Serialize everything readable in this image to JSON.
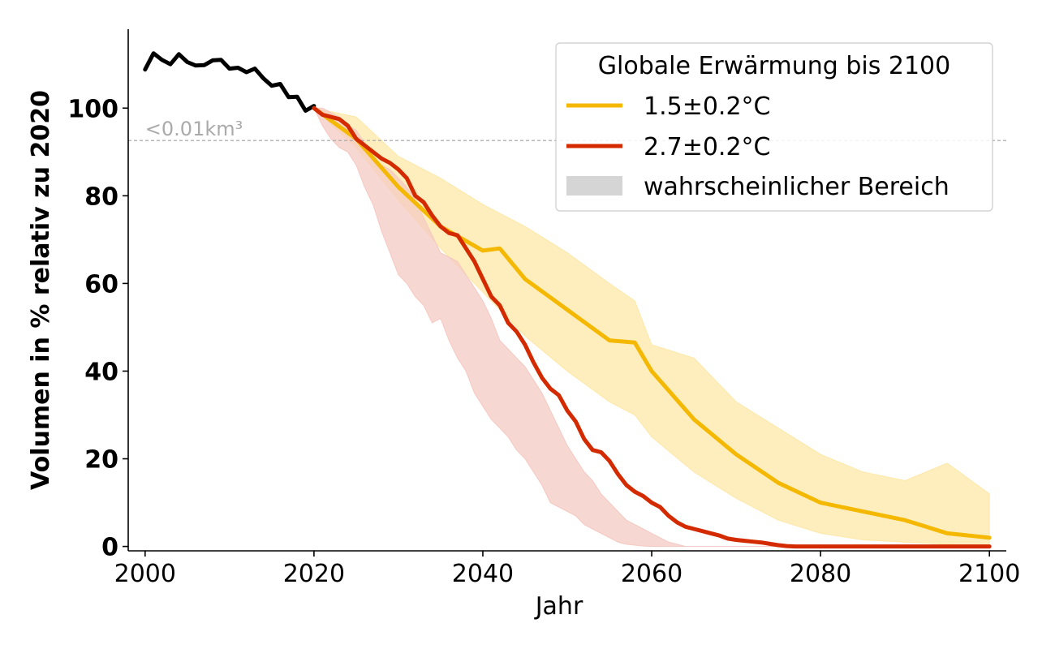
{
  "chart_data": {
    "type": "line",
    "xlabel": "Jahr",
    "ylabel": "Volumen in % relativ zu 2020",
    "xlim": [
      1998,
      2102
    ],
    "ylim": [
      -1,
      118
    ],
    "x_ticks": [
      2000,
      2020,
      2040,
      2060,
      2080,
      2100
    ],
    "y_ticks": [
      0,
      20,
      40,
      60,
      80,
      100
    ],
    "grid": false,
    "legend": {
      "title": "Globale Erwärmung bis 2100",
      "position": "top-right",
      "range_label": "wahrscheinlicher Bereich",
      "range_color": "#d5d5d5"
    },
    "threshold": {
      "y": 92.6,
      "label": "<0.01km³",
      "color": "#aaaaaa"
    },
    "historical": {
      "color": "#000000",
      "x": [
        2000,
        2001,
        2002,
        2003,
        2004,
        2005,
        2006,
        2007,
        2008,
        2009,
        2010,
        2011,
        2012,
        2013,
        2014,
        2015,
        2016,
        2017,
        2018,
        2019,
        2020
      ],
      "y": [
        108.8,
        112.5,
        111,
        110,
        112.3,
        110.5,
        109.7,
        109.8,
        110.9,
        111,
        109,
        109.2,
        108.2,
        109,
        106.8,
        105.1,
        105.5,
        102.5,
        102.6,
        99.4,
        100.5
      ]
    },
    "series": [
      {
        "name": "1.5±0.2°C",
        "color": "#f5b800",
        "band_color": "#fde8a8",
        "x": [
          2020,
          2025,
          2030,
          2035,
          2040,
          2042,
          2045,
          2050,
          2055,
          2058,
          2060,
          2065,
          2070,
          2075,
          2080,
          2085,
          2090,
          2095,
          2100
        ],
        "y": [
          100,
          93,
          82,
          73,
          67.5,
          68,
          61,
          54,
          47,
          46.5,
          40,
          29,
          21,
          14.5,
          10,
          8,
          6,
          3,
          2
        ],
        "lower": [
          100,
          91,
          79,
          68,
          58,
          54,
          48,
          40,
          33,
          30,
          25,
          17,
          11,
          6,
          3,
          1.5,
          1,
          0.5,
          0
        ],
        "upper": [
          100,
          98,
          89,
          84,
          78,
          76,
          73,
          67,
          60,
          56,
          46,
          43,
          33,
          27,
          21,
          17,
          15,
          19,
          12
        ]
      },
      {
        "name": "2.7±0.2°C",
        "color": "#d42a00",
        "band_color": "#f4c9c2",
        "x": [
          2020,
          2021,
          2022,
          2023,
          2024,
          2025,
          2026,
          2027,
          2028,
          2029,
          2030,
          2031,
          2032,
          2033,
          2034,
          2035,
          2036,
          2037,
          2038,
          2039,
          2040,
          2041,
          2042,
          2043,
          2044,
          2045,
          2046,
          2047,
          2048,
          2049,
          2050,
          2051,
          2052,
          2053,
          2054,
          2055,
          2056,
          2057,
          2058,
          2059,
          2060,
          2061,
          2062,
          2063,
          2064,
          2065,
          2066,
          2067,
          2068,
          2069,
          2070,
          2071,
          2072,
          2073,
          2074,
          2075,
          2076,
          2077,
          2078,
          2079,
          2080,
          2085,
          2090,
          2095,
          2100
        ],
        "y": [
          100,
          98.5,
          98,
          97.5,
          96,
          93,
          91.5,
          90,
          88.5,
          87.5,
          86,
          84,
          80,
          78.5,
          75.5,
          73,
          71.5,
          71,
          68,
          65,
          61,
          57,
          55,
          51,
          49,
          46,
          42,
          38.5,
          36,
          34.5,
          31,
          28.5,
          24.5,
          22,
          21.5,
          19.5,
          16.5,
          14,
          12.5,
          11.5,
          10,
          9,
          7,
          5.5,
          4.5,
          4,
          3.5,
          3,
          2.5,
          1.8,
          1.5,
          1.3,
          1.1,
          0.9,
          0.6,
          0.3,
          0.1,
          0,
          0,
          0,
          0,
          0,
          0,
          0,
          0
        ],
        "lower": [
          100,
          96,
          93,
          91,
          90,
          87,
          82,
          78,
          72,
          67,
          62,
          60,
          57,
          55,
          51,
          52,
          47,
          43,
          40,
          35,
          32,
          29,
          27,
          25,
          22,
          20,
          17,
          14,
          10,
          9,
          8,
          7,
          5,
          4,
          3,
          2,
          1,
          0.5,
          0.3,
          0.1,
          0,
          0,
          0,
          0,
          0,
          0,
          0,
          0,
          0,
          0,
          0,
          0,
          0,
          0,
          0,
          0,
          0,
          0,
          0,
          0,
          0,
          0,
          0,
          0,
          0
        ],
        "upper": [
          100,
          100,
          99,
          98,
          96,
          95,
          92,
          89,
          87,
          86,
          84,
          82,
          79,
          75,
          71,
          67,
          66,
          65,
          62,
          59,
          56,
          52,
          47,
          45,
          43,
          41,
          38,
          35,
          31,
          27,
          23,
          20,
          17,
          15,
          12,
          10,
          8,
          6,
          5,
          4,
          3,
          2,
          1,
          0.5,
          0,
          0,
          0,
          0,
          0,
          0,
          0,
          0,
          0,
          0,
          0,
          0,
          0,
          0,
          0,
          0,
          0,
          0,
          0,
          0,
          0
        ]
      }
    ]
  }
}
